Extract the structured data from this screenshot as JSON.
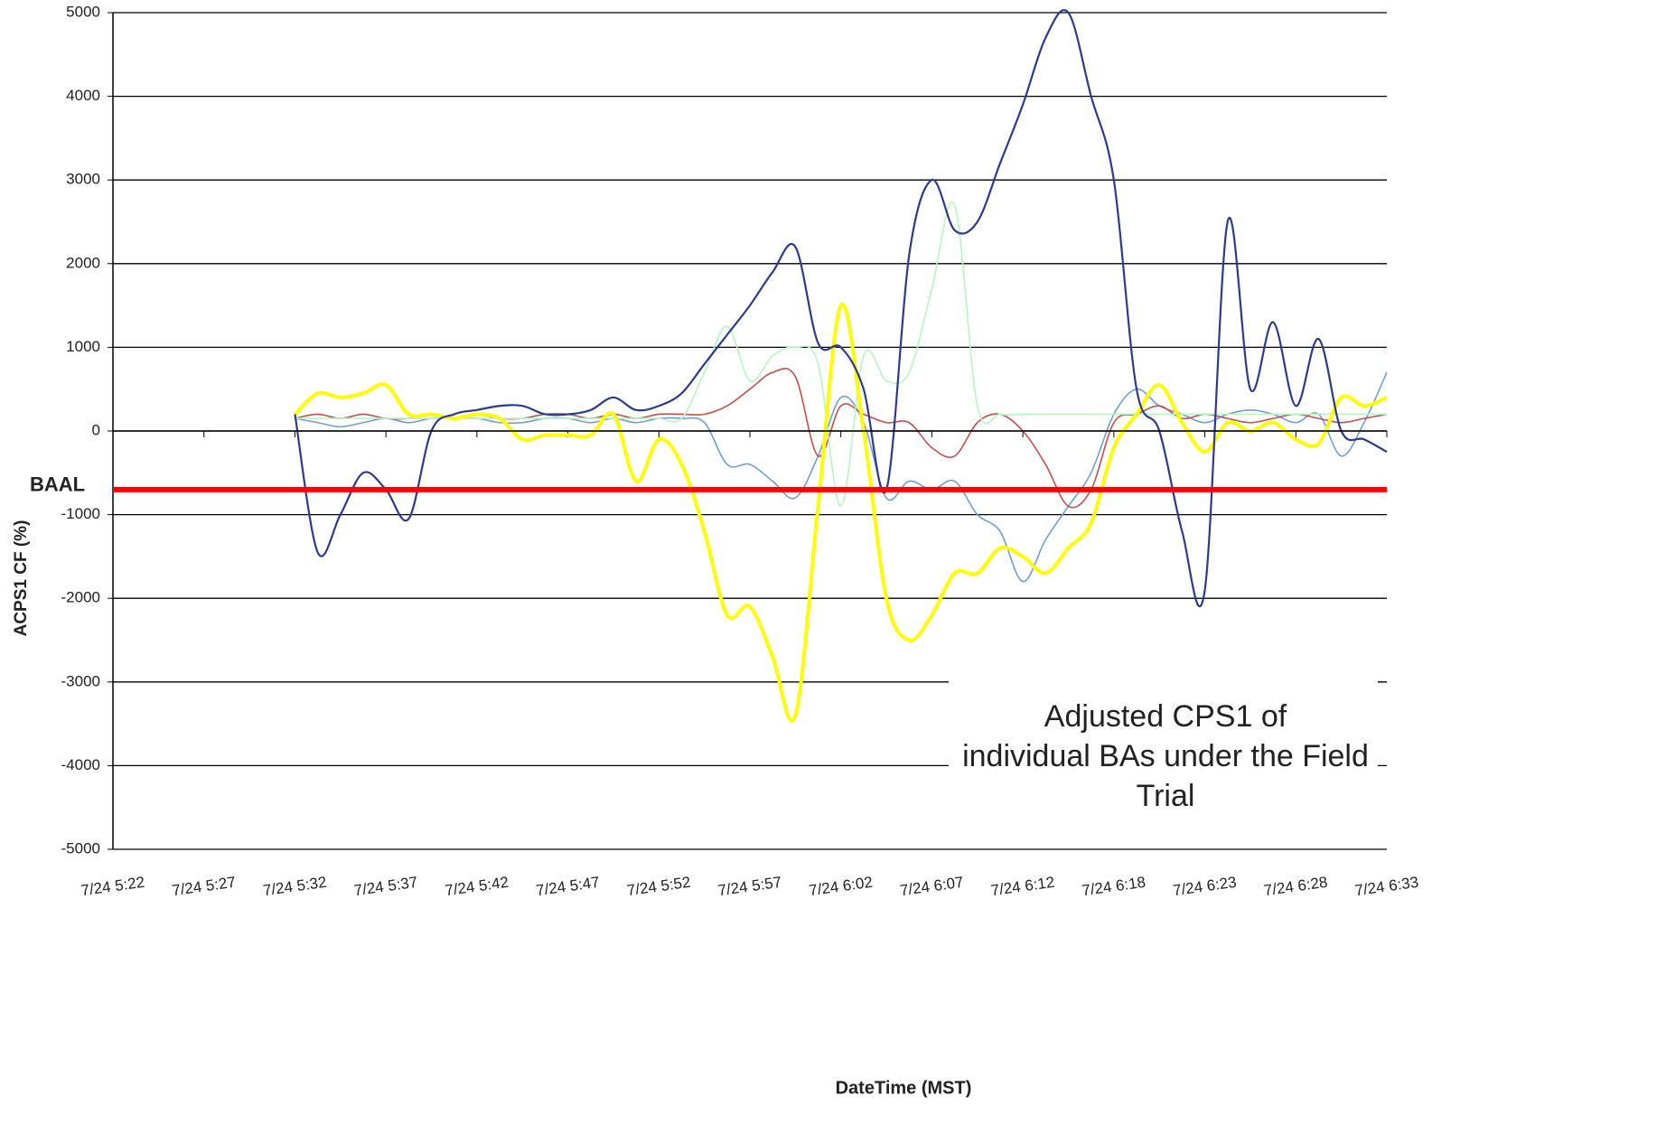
{
  "chart_data": {
    "type": "line",
    "x_label": "DateTime (MST)",
    "y_label": "ACPS1 CF (%)",
    "annotation": "Adjusted CPS1 of individual BAs under the Field Trial",
    "reference_line": {
      "label": "BAAL",
      "value": -700,
      "color": "#ff0000"
    },
    "categories": [
      "7/24 5:22",
      null,
      null,
      null,
      "7/24 5:27",
      null,
      null,
      null,
      "7/24 5:32",
      null,
      null,
      null,
      "7/24 5:37",
      null,
      null,
      null,
      "7/24 5:42",
      null,
      null,
      null,
      "7/24 5:47",
      null,
      null,
      null,
      "7/24 5:52",
      null,
      null,
      null,
      "7/24 5:57",
      null,
      null,
      null,
      "7/24 6:02",
      null,
      null,
      null,
      "7/24 6:07",
      null,
      null,
      null,
      "7/24 6:12",
      null,
      null,
      null,
      "7/24 6:18",
      null,
      null,
      null,
      "7/24 6:23",
      null,
      null,
      null,
      "7/24 6:28",
      null,
      null,
      null,
      "7/24 6:33"
    ],
    "series": [
      {
        "color": "#6f9fd0",
        "values": [
          null,
          null,
          null,
          null,
          null,
          null,
          null,
          null,
          150,
          100,
          50,
          100,
          150,
          100,
          150,
          150,
          150,
          100,
          100,
          150,
          150,
          100,
          150,
          100,
          150,
          150,
          100,
          -400,
          -400,
          -600,
          -800,
          -300,
          400,
          100,
          -800,
          -600,
          -700,
          -600,
          -1000,
          -1200,
          -1800,
          -1300,
          -900,
          -500,
          200,
          500,
          300,
          200,
          100,
          200,
          250,
          200,
          100,
          200,
          -300,
          100,
          700
        ]
      },
      {
        "color": "#c0504d",
        "values": [
          null,
          null,
          null,
          null,
          null,
          null,
          null,
          null,
          150,
          200,
          150,
          200,
          150,
          150,
          200,
          150,
          200,
          150,
          150,
          200,
          200,
          150,
          200,
          150,
          200,
          200,
          200,
          300,
          500,
          700,
          650,
          -300,
          300,
          200,
          100,
          100,
          -200,
          -300,
          100,
          200,
          0,
          -400,
          -900,
          -700,
          100,
          200,
          300,
          150,
          200,
          150,
          100,
          150,
          200,
          150,
          100,
          150,
          200
        ]
      },
      {
        "color": "#b8f5c0",
        "values": [
          null,
          null,
          null,
          null,
          null,
          null,
          null,
          null,
          150,
          150,
          150,
          150,
          150,
          150,
          150,
          150,
          150,
          150,
          150,
          150,
          150,
          150,
          150,
          150,
          150,
          150,
          700,
          1250,
          600,
          900,
          1000,
          800,
          -900,
          900,
          600,
          700,
          1700,
          2700,
          300,
          200,
          200,
          200,
          200,
          200,
          200,
          200,
          200,
          200,
          200,
          200,
          200,
          200,
          200,
          200,
          200,
          200,
          200
        ]
      },
      {
        "color": "#ffff00",
        "values": [
          null,
          null,
          null,
          null,
          null,
          null,
          null,
          null,
          200,
          450,
          400,
          450,
          550,
          200,
          200,
          150,
          200,
          150,
          -100,
          -50,
          -50,
          -50,
          200,
          -600,
          -100,
          -400,
          -1200,
          -2200,
          -2100,
          -2700,
          -3400,
          -900,
          1500,
          0,
          -2000,
          -2500,
          -2200,
          -1700,
          -1700,
          -1400,
          -1500,
          -1700,
          -1400,
          -1100,
          -200,
          200,
          550,
          100,
          -250,
          100,
          0,
          100,
          -100,
          -150,
          400,
          300,
          400
        ]
      },
      {
        "color": "#2e3a8c",
        "values": [
          null,
          null,
          null,
          null,
          null,
          null,
          null,
          null,
          200,
          -1450,
          -1000,
          -500,
          -700,
          -1050,
          0,
          200,
          250,
          300,
          300,
          200,
          200,
          250,
          400,
          250,
          300,
          450,
          800,
          1150,
          1500,
          1900,
          2200,
          1050,
          1000,
          500,
          -700,
          2100,
          3000,
          2400,
          2500,
          3200,
          3900,
          4700,
          5000,
          4000,
          3000,
          500,
          0,
          -1200,
          -1900,
          2500,
          500,
          1300,
          300,
          1100,
          0,
          -100,
          -250
        ]
      }
    ],
    "ylim": [
      -5000,
      5000
    ],
    "yticks": [
      -5000,
      -4000,
      -3000,
      -2000,
      -1000,
      0,
      1000,
      2000,
      3000,
      4000,
      5000
    ],
    "grid": true
  }
}
